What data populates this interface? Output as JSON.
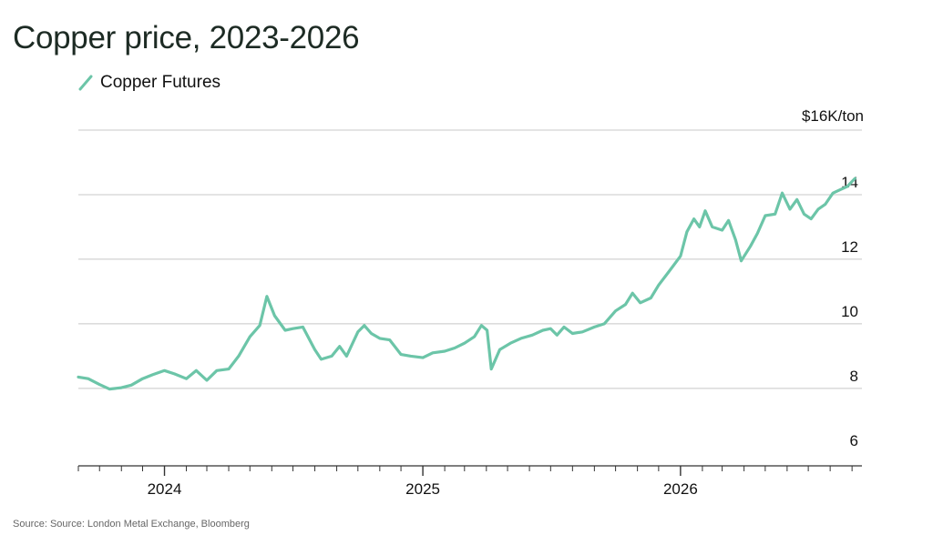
{
  "header": {
    "title": "Copper price, 2023-2026"
  },
  "footer": {
    "source": "Source: Source: London Metal Exchange, Bloomberg"
  },
  "colors": {
    "series": "#6cc5a8",
    "grid": "#c8c8c8",
    "axis": "#333333"
  },
  "chart_data": {
    "type": "line",
    "title": "Copper price, 2023-2026",
    "xlabel": "",
    "ylabel": "",
    "y_unit_label": "$16K/ton",
    "y_ticks": [
      6,
      8,
      10,
      12,
      14
    ],
    "ylim": [
      5.6,
      16
    ],
    "x_ticks": [
      "2024",
      "2025",
      "2026"
    ],
    "xlim": [
      "2023-09-01",
      "2026-09-15"
    ],
    "grid": true,
    "legend_position": "top-left",
    "series": [
      {
        "name": "Copper Futures",
        "points": [
          [
            "2023-09-01",
            8.35
          ],
          [
            "2023-09-15",
            8.3
          ],
          [
            "2023-10-01",
            8.12
          ],
          [
            "2023-10-15",
            7.98
          ],
          [
            "2023-11-01",
            8.02
          ],
          [
            "2023-11-15",
            8.1
          ],
          [
            "2023-12-01",
            8.3
          ],
          [
            "2023-12-15",
            8.42
          ],
          [
            "2024-01-01",
            8.55
          ],
          [
            "2024-01-15",
            8.45
          ],
          [
            "2024-02-01",
            8.3
          ],
          [
            "2024-02-15",
            8.55
          ],
          [
            "2024-03-01",
            8.25
          ],
          [
            "2024-03-15",
            8.55
          ],
          [
            "2024-04-01",
            8.6
          ],
          [
            "2024-04-15",
            9.0
          ],
          [
            "2024-05-01",
            9.6
          ],
          [
            "2024-05-15",
            9.95
          ],
          [
            "2024-05-25",
            10.85
          ],
          [
            "2024-06-05",
            10.25
          ],
          [
            "2024-06-20",
            9.8
          ],
          [
            "2024-07-01",
            9.85
          ],
          [
            "2024-07-15",
            9.9
          ],
          [
            "2024-08-01",
            9.2
          ],
          [
            "2024-08-10",
            8.9
          ],
          [
            "2024-08-25",
            9.0
          ],
          [
            "2024-09-05",
            9.3
          ],
          [
            "2024-09-15",
            9.0
          ],
          [
            "2024-10-01",
            9.75
          ],
          [
            "2024-10-10",
            9.95
          ],
          [
            "2024-10-20",
            9.7
          ],
          [
            "2024-11-01",
            9.55
          ],
          [
            "2024-11-15",
            9.5
          ],
          [
            "2024-12-01",
            9.05
          ],
          [
            "2024-12-15",
            9.0
          ],
          [
            "2025-01-01",
            8.95
          ],
          [
            "2025-01-15",
            9.1
          ],
          [
            "2025-02-01",
            9.15
          ],
          [
            "2025-02-15",
            9.25
          ],
          [
            "2025-03-01",
            9.4
          ],
          [
            "2025-03-15",
            9.6
          ],
          [
            "2025-03-25",
            9.95
          ],
          [
            "2025-04-02",
            9.8
          ],
          [
            "2025-04-08",
            8.6
          ],
          [
            "2025-04-20",
            9.2
          ],
          [
            "2025-05-05",
            9.4
          ],
          [
            "2025-05-20",
            9.55
          ],
          [
            "2025-06-05",
            9.65
          ],
          [
            "2025-06-20",
            9.8
          ],
          [
            "2025-07-01",
            9.85
          ],
          [
            "2025-07-10",
            9.65
          ],
          [
            "2025-07-20",
            9.9
          ],
          [
            "2025-08-01",
            9.7
          ],
          [
            "2025-08-15",
            9.75
          ],
          [
            "2025-09-01",
            9.9
          ],
          [
            "2025-09-15",
            10.0
          ],
          [
            "2025-10-01",
            10.4
          ],
          [
            "2025-10-15",
            10.6
          ],
          [
            "2025-10-25",
            10.95
          ],
          [
            "2025-11-05",
            10.65
          ],
          [
            "2025-11-20",
            10.8
          ],
          [
            "2025-12-01",
            11.2
          ],
          [
            "2025-12-15",
            11.6
          ],
          [
            "2026-01-01",
            12.1
          ],
          [
            "2026-01-10",
            12.85
          ],
          [
            "2026-01-20",
            13.25
          ],
          [
            "2026-01-28",
            13.0
          ],
          [
            "2026-02-05",
            13.5
          ],
          [
            "2026-02-15",
            13.0
          ],
          [
            "2026-03-01",
            12.9
          ],
          [
            "2026-03-10",
            13.2
          ],
          [
            "2026-03-20",
            12.6
          ],
          [
            "2026-03-28",
            11.95
          ],
          [
            "2026-04-10",
            12.4
          ],
          [
            "2026-04-20",
            12.8
          ],
          [
            "2026-05-01",
            13.35
          ],
          [
            "2026-05-15",
            13.4
          ],
          [
            "2026-05-25",
            14.05
          ],
          [
            "2026-06-05",
            13.55
          ],
          [
            "2026-06-15",
            13.85
          ],
          [
            "2026-06-25",
            13.4
          ],
          [
            "2026-07-05",
            13.25
          ],
          [
            "2026-07-15",
            13.55
          ],
          [
            "2026-07-25",
            13.7
          ],
          [
            "2026-08-05",
            14.05
          ],
          [
            "2026-08-15",
            14.15
          ],
          [
            "2026-08-25",
            14.25
          ],
          [
            "2026-09-05",
            14.5
          ]
        ]
      }
    ]
  }
}
